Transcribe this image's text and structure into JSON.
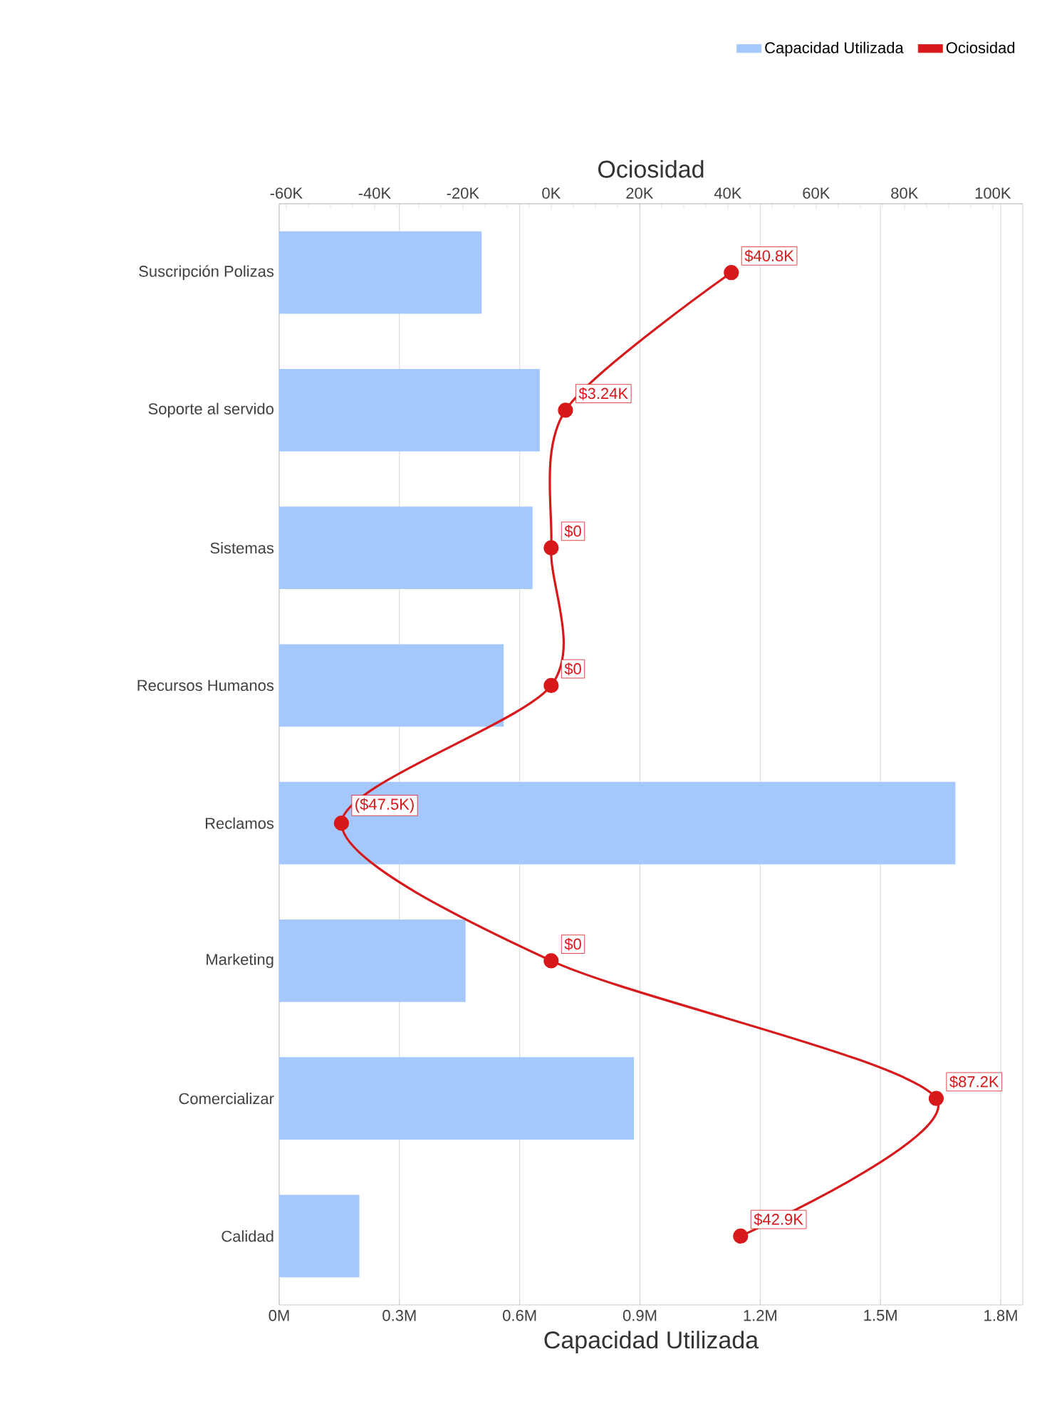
{
  "chart_data": {
    "type": "bar",
    "orientation": "horizontal",
    "xlabel": "Capacidad Utilizada",
    "x2label": "Ociosidad",
    "categories": [
      "Suscripción Polizas",
      "Soporte al servido",
      "Sistemas",
      "Recursos Humanos",
      "Reclamos",
      "Marketing",
      "Comercializar",
      "Calidad"
    ],
    "series": [
      {
        "name": "Capacidad Utilizada",
        "color": "#a4c8fb",
        "values": [
          0.505,
          0.65,
          0.632,
          0.56,
          1.687,
          0.465,
          0.885,
          0.2
        ]
      },
      {
        "name": "Ociosidad",
        "type": "line",
        "axis": "x2",
        "color": "#d7191c",
        "marker": "circle",
        "values": [
          40.8,
          3.24,
          0,
          0,
          -47.5,
          0,
          87.2,
          42.9
        ],
        "value_labels": [
          "$40.8K",
          "$3.24K",
          "$0",
          "$0",
          "($47.5K)",
          "$0",
          "$87.2K",
          "$42.9K"
        ]
      }
    ],
    "xlim": [
      0,
      1.855
    ],
    "xticks": [
      {
        "value": 0,
        "label": "0M"
      },
      {
        "value": 0.3,
        "label": "0.3M"
      },
      {
        "value": 0.6,
        "label": "0.6M"
      },
      {
        "value": 0.9,
        "label": "0.9M"
      },
      {
        "value": 1.2,
        "label": "1.2M"
      },
      {
        "value": 1.5,
        "label": "1.5M"
      },
      {
        "value": 1.8,
        "label": "1.8M"
      }
    ],
    "x2lim": [
      -61.6,
      106.8
    ],
    "x2ticks": [
      {
        "value": -60,
        "label": "-60K"
      },
      {
        "value": -40,
        "label": "-40K"
      },
      {
        "value": -20,
        "label": "-20K"
      },
      {
        "value": 0,
        "label": "0K"
      },
      {
        "value": 20,
        "label": "20K"
      },
      {
        "value": 40,
        "label": "40K"
      },
      {
        "value": 60,
        "label": "60K"
      },
      {
        "value": 80,
        "label": "80K"
      },
      {
        "value": 100,
        "label": "100K"
      }
    ],
    "grid": "x",
    "legend": "top right"
  }
}
